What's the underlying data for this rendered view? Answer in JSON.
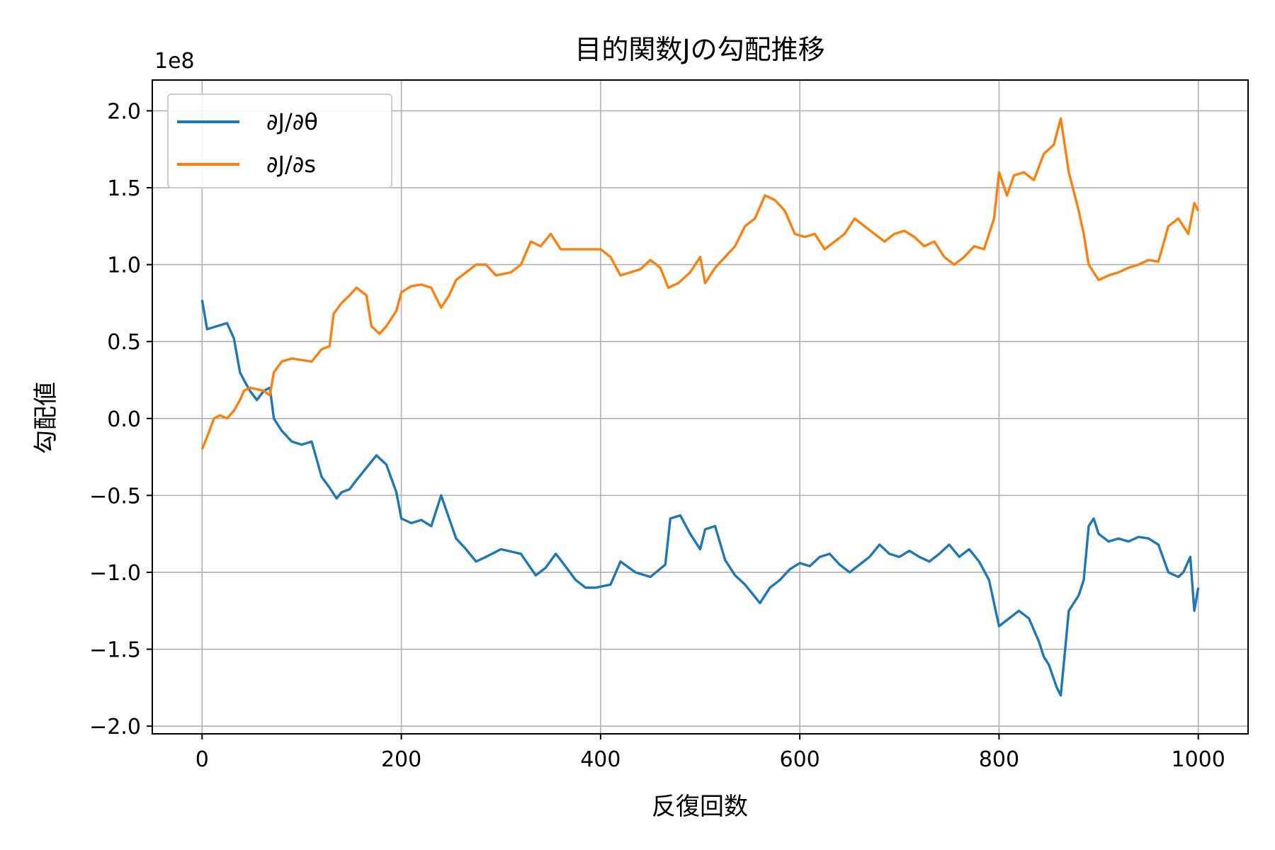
{
  "chart_data": {
    "type": "line",
    "title": "目的関数Jの勾配推移",
    "xlabel": "反復回数",
    "ylabel": "勾配値",
    "y_offset_label": "1e8",
    "xlim": [
      -50,
      1050
    ],
    "ylim": [
      -2.05,
      2.2
    ],
    "xticks": [
      0,
      200,
      400,
      600,
      800,
      1000
    ],
    "xtick_labels": [
      "0",
      "200",
      "400",
      "600",
      "800",
      "1000"
    ],
    "yticks": [
      2.0,
      1.5,
      1.0,
      0.5,
      0.0,
      -0.5,
      -1.0,
      -1.5,
      -2.0
    ],
    "ytick_labels": [
      "2.0",
      "1.5",
      "1.0",
      "0.5",
      "0.0",
      "−0.5",
      "−1.0",
      "−1.5",
      "−2.0"
    ],
    "grid": true,
    "legend_position": "upper-left",
    "series": [
      {
        "name": "∂J/∂θ",
        "color": "#1f77b4",
        "x": [
          0,
          5,
          15,
          25,
          32,
          38,
          42,
          48,
          55,
          62,
          68,
          72,
          80,
          90,
          100,
          110,
          120,
          128,
          135,
          140,
          148,
          155,
          165,
          175,
          185,
          195,
          200,
          210,
          220,
          230,
          240,
          248,
          255,
          265,
          275,
          285,
          300,
          320,
          335,
          345,
          355,
          360,
          375,
          385,
          395,
          410,
          420,
          435,
          450,
          465,
          470,
          480,
          490,
          500,
          505,
          515,
          525,
          535,
          545,
          560,
          570,
          580,
          590,
          600,
          610,
          620,
          630,
          640,
          650,
          660,
          670,
          680,
          690,
          700,
          710,
          720,
          730,
          740,
          750,
          760,
          770,
          780,
          790,
          800,
          810,
          820,
          830,
          840,
          845,
          850,
          858,
          862,
          870,
          880,
          885,
          890,
          895,
          900,
          910,
          920,
          930,
          940,
          950,
          960,
          970,
          980,
          985,
          992,
          996,
          1000
        ],
        "y": [
          0.77,
          0.58,
          0.6,
          0.62,
          0.52,
          0.3,
          0.25,
          0.18,
          0.12,
          0.18,
          0.2,
          0.0,
          -0.08,
          -0.15,
          -0.17,
          -0.15,
          -0.38,
          -0.45,
          -0.52,
          -0.48,
          -0.46,
          -0.4,
          -0.32,
          -0.24,
          -0.3,
          -0.48,
          -0.65,
          -0.68,
          -0.66,
          -0.7,
          -0.5,
          -0.65,
          -0.78,
          -0.85,
          -0.93,
          -0.9,
          -0.85,
          -0.88,
          -1.02,
          -0.97,
          -0.88,
          -0.92,
          -1.05,
          -1.1,
          -1.1,
          -1.08,
          -0.93,
          -1.0,
          -1.03,
          -0.95,
          -0.65,
          -0.63,
          -0.75,
          -0.85,
          -0.72,
          -0.7,
          -0.92,
          -1.02,
          -1.08,
          -1.2,
          -1.1,
          -1.05,
          -0.98,
          -0.94,
          -0.96,
          -0.9,
          -0.88,
          -0.95,
          -1.0,
          -0.95,
          -0.9,
          -0.82,
          -0.88,
          -0.9,
          -0.86,
          -0.9,
          -0.93,
          -0.88,
          -0.82,
          -0.9,
          -0.85,
          -0.93,
          -1.05,
          -1.35,
          -1.3,
          -1.25,
          -1.3,
          -1.45,
          -1.55,
          -1.6,
          -1.75,
          -1.8,
          -1.25,
          -1.15,
          -1.05,
          -0.7,
          -0.65,
          -0.75,
          -0.8,
          -0.78,
          -0.8,
          -0.77,
          -0.78,
          -0.82,
          -1.0,
          -1.03,
          -1.0,
          -0.9,
          -1.25,
          -1.1
        ]
      },
      {
        "name": "∂J/∂s",
        "color": "#ff7f0e",
        "x": [
          0,
          5,
          12,
          18,
          25,
          32,
          38,
          42,
          48,
          55,
          62,
          68,
          72,
          80,
          90,
          100,
          110,
          120,
          128,
          132,
          140,
          148,
          155,
          165,
          170,
          178,
          185,
          195,
          200,
          210,
          220,
          230,
          240,
          248,
          255,
          265,
          275,
          285,
          295,
          310,
          320,
          330,
          340,
          350,
          360,
          370,
          385,
          400,
          410,
          420,
          430,
          440,
          450,
          460,
          468,
          478,
          490,
          500,
          505,
          515,
          525,
          535,
          545,
          555,
          565,
          575,
          585,
          595,
          605,
          615,
          625,
          635,
          645,
          655,
          665,
          675,
          685,
          695,
          705,
          715,
          725,
          735,
          745,
          755,
          765,
          775,
          785,
          795,
          800,
          808,
          815,
          825,
          835,
          845,
          855,
          862,
          870,
          880,
          885,
          890,
          900,
          910,
          920,
          930,
          940,
          950,
          960,
          970,
          980,
          990,
          996,
          1000
        ],
        "y": [
          -0.2,
          -0.12,
          0.0,
          0.02,
          0.0,
          0.05,
          0.12,
          0.18,
          0.2,
          0.19,
          0.18,
          0.15,
          0.3,
          0.37,
          0.39,
          0.38,
          0.37,
          0.45,
          0.47,
          0.68,
          0.75,
          0.8,
          0.85,
          0.8,
          0.6,
          0.55,
          0.6,
          0.7,
          0.82,
          0.86,
          0.87,
          0.85,
          0.72,
          0.8,
          0.9,
          0.95,
          1.0,
          1.0,
          0.93,
          0.95,
          1.0,
          1.15,
          1.12,
          1.2,
          1.1,
          1.1,
          1.1,
          1.1,
          1.05,
          0.93,
          0.95,
          0.97,
          1.03,
          0.98,
          0.85,
          0.88,
          0.95,
          1.05,
          0.88,
          0.98,
          1.05,
          1.12,
          1.25,
          1.3,
          1.45,
          1.42,
          1.35,
          1.2,
          1.18,
          1.2,
          1.1,
          1.15,
          1.2,
          1.3,
          1.25,
          1.2,
          1.15,
          1.2,
          1.22,
          1.18,
          1.12,
          1.15,
          1.05,
          1.0,
          1.05,
          1.12,
          1.1,
          1.3,
          1.6,
          1.45,
          1.58,
          1.6,
          1.55,
          1.72,
          1.78,
          1.95,
          1.6,
          1.35,
          1.2,
          1.0,
          0.9,
          0.93,
          0.95,
          0.98,
          1.0,
          1.03,
          1.02,
          1.25,
          1.3,
          1.2,
          1.4,
          1.35
        ]
      }
    ]
  }
}
